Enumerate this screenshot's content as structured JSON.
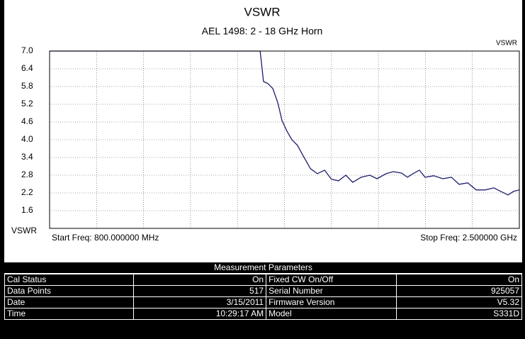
{
  "chart_data": {
    "type": "line",
    "title": "VSWR",
    "subtitle": "AEL 1498: 2 - 18 GHz Horn",
    "y_label_top": "VSWR",
    "y_label_bottom": "VSWR",
    "start_label": "Start Freq: 800.000000 MHz",
    "stop_label": "Stop Freq: 2.500000 GHz",
    "color": "#1c1c6e",
    "grid": true,
    "xlim": [
      800,
      2500
    ],
    "xticks": [
      800,
      970,
      1140,
      1310,
      1480,
      1650,
      1820,
      1990,
      2160,
      2330,
      2500
    ],
    "ylim": [
      1.0,
      7.0
    ],
    "yticks": [
      1.6,
      2.2,
      2.8,
      3.4,
      {
        "value": 4,
        "label": "4.0"
      },
      4.6,
      5.2,
      5.8,
      6.4,
      {
        "value": 7,
        "label": "7.0"
      }
    ],
    "x": [
      800,
      1562,
      1574,
      1590,
      1608,
      1626,
      1641,
      1659,
      1677,
      1697,
      1718,
      1744,
      1769,
      1795,
      1820,
      1846,
      1872,
      1897,
      1928,
      1959,
      1985,
      2018,
      2044,
      2074,
      2095,
      2115,
      2138,
      2159,
      2190,
      2223,
      2254,
      2282,
      2313,
      2344,
      2377,
      2408,
      2433,
      2459,
      2479,
      2500
    ],
    "values": [
      7.0,
      7.0,
      5.97,
      5.9,
      5.73,
      5.25,
      4.65,
      4.29,
      4.0,
      3.81,
      3.45,
      3.02,
      2.85,
      2.97,
      2.66,
      2.61,
      2.8,
      2.56,
      2.73,
      2.8,
      2.68,
      2.85,
      2.92,
      2.87,
      2.73,
      2.85,
      2.97,
      2.73,
      2.78,
      2.68,
      2.73,
      2.49,
      2.54,
      2.3,
      2.3,
      2.37,
      2.25,
      2.13,
      2.25,
      2.3
    ]
  },
  "parameters": {
    "title": "Measurement Parameters",
    "rows": [
      [
        "Cal Status",
        "On",
        "Fixed CW On/Off",
        "On"
      ],
      [
        "Data Points",
        "517",
        "Serial Number",
        "925057"
      ],
      [
        "Date",
        "3/15/2011",
        "Firmware Version",
        "V5.32"
      ],
      [
        "Time",
        "10:29:17 AM",
        "Model",
        "S331D"
      ]
    ]
  }
}
